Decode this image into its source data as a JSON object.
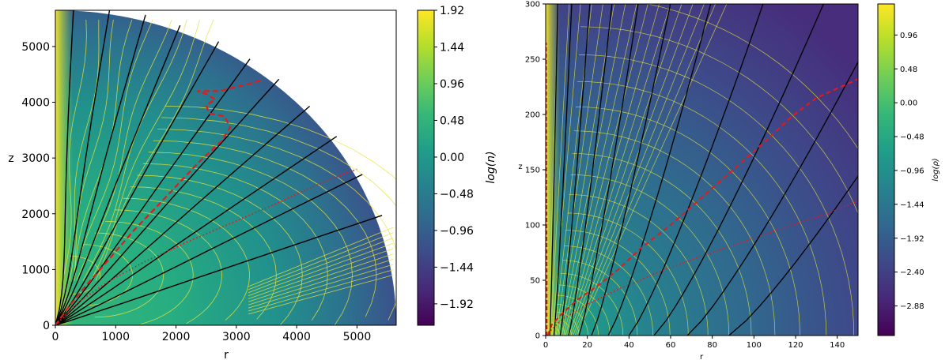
{
  "chart_data": [
    {
      "type": "heatmap",
      "xlabel": "r",
      "ylabel": "z",
      "xlim": [
        0,
        5650
      ],
      "ylim": [
        0,
        5650
      ],
      "xticks": [
        0,
        1000,
        2000,
        3000,
        4000,
        5000
      ],
      "yticks": [
        0,
        1000,
        2000,
        3000,
        4000,
        5000
      ],
      "xtick_labels": [
        "0",
        "1000",
        "2000",
        "3000",
        "4000",
        "5000"
      ],
      "ytick_labels": [
        "0",
        "1000",
        "2000",
        "3000",
        "4000",
        "5000"
      ],
      "domain_shape": "quarter-disk",
      "domain_radius": 5650,
      "colorbar": {
        "label": "log(n)",
        "min": -2.2,
        "max": 1.92,
        "ticks": [
          1.92,
          1.44,
          0.96,
          0.48,
          0.0,
          -0.48,
          -0.96,
          -1.44,
          -1.92
        ],
        "tick_labels": [
          "1.92",
          "1.44",
          "0.96",
          "0.48",
          "0.00",
          "−0.48",
          "−0.96",
          "−1.44",
          "−1.92"
        ]
      },
      "colormap": "viridis",
      "overlays": {
        "field_lines_color": "#000000",
        "field_lines_angles_deg": [
          87,
          81,
          75,
          69,
          62,
          56,
          50,
          43,
          36,
          28,
          20
        ],
        "density_contours_color": "#e6e33c",
        "red_dashed_curve": [
          [
            0,
            0
          ],
          [
            200,
            300
          ],
          [
            500,
            700
          ],
          [
            900,
            1200
          ],
          [
            1300,
            1700
          ],
          [
            1700,
            2150
          ],
          [
            2050,
            2550
          ],
          [
            2400,
            2950
          ],
          [
            2750,
            3300
          ],
          [
            2900,
            3550
          ],
          [
            2800,
            3750
          ],
          [
            2550,
            3800
          ],
          [
            2500,
            3950
          ],
          [
            2650,
            4050
          ],
          [
            2500,
            4150
          ],
          [
            2350,
            4200
          ],
          [
            2700,
            4200
          ],
          [
            3100,
            4300
          ],
          [
            3450,
            4400
          ]
        ],
        "red_dotted_curve": [
          [
            0,
            0
          ],
          [
            400,
            430
          ],
          [
            900,
            800
          ],
          [
            1500,
            1150
          ],
          [
            2200,
            1500
          ],
          [
            3000,
            1870
          ],
          [
            3800,
            2250
          ],
          [
            4500,
            2600
          ],
          [
            5000,
            2800
          ]
        ]
      }
    },
    {
      "type": "heatmap",
      "xlabel": "r",
      "ylabel": "z",
      "xlim": [
        0,
        150
      ],
      "ylim": [
        0,
        300
      ],
      "xticks": [
        0,
        20,
        40,
        60,
        80,
        100,
        120,
        140
      ],
      "yticks": [
        0,
        50,
        100,
        150,
        200,
        250,
        300
      ],
      "xtick_labels": [
        "0",
        "20",
        "40",
        "60",
        "80",
        "100",
        "120",
        "140"
      ],
      "ytick_labels": [
        "0",
        "50",
        "100",
        "150",
        "200",
        "250",
        "300"
      ],
      "colorbar": {
        "label": "log(ρ)",
        "min": -3.3,
        "max": 1.4,
        "ticks": [
          0.96,
          0.48,
          0.0,
          -0.48,
          -0.96,
          -1.44,
          -1.92,
          -2.4,
          -2.88
        ],
        "tick_labels": [
          "0.96",
          "0.48",
          "0.00",
          "−0.48",
          "−0.96",
          "−1.44",
          "−1.92",
          "−2.40",
          "−2.88"
        ]
      },
      "colormap": "viridis",
      "overlays": {
        "field_lines_color": "#000000",
        "field_lines_start_r": [
          2,
          4,
          7,
          11,
          16,
          22,
          30,
          40,
          52,
          68,
          88
        ],
        "field_lines_end_r": [
          6,
          13,
          22,
          33,
          46,
          62,
          82,
          108,
          138,
          170,
          210
        ],
        "density_contours_color": "#e6e33c",
        "red_dashed_curve": [
          [
            1,
            0
          ],
          [
            3,
            10
          ],
          [
            8,
            20
          ],
          [
            15,
            32
          ],
          [
            25,
            45
          ],
          [
            35,
            60
          ],
          [
            45,
            78
          ],
          [
            60,
            100
          ],
          [
            75,
            125
          ],
          [
            90,
            150
          ],
          [
            105,
            175
          ],
          [
            118,
            198
          ],
          [
            130,
            215
          ],
          [
            150,
            232
          ]
        ],
        "red_dotted_curve": [
          [
            0,
            0
          ],
          [
            8,
            15
          ],
          [
            20,
            28
          ],
          [
            35,
            42
          ],
          [
            55,
            58
          ],
          [
            75,
            72
          ],
          [
            95,
            85
          ],
          [
            115,
            98
          ],
          [
            135,
            110
          ],
          [
            150,
            122
          ]
        ],
        "red_axis_dashed": [
          [
            0.5,
            0
          ],
          [
            0.5,
            50
          ],
          [
            0.3,
            150
          ],
          [
            0.2,
            265
          ]
        ]
      }
    }
  ]
}
